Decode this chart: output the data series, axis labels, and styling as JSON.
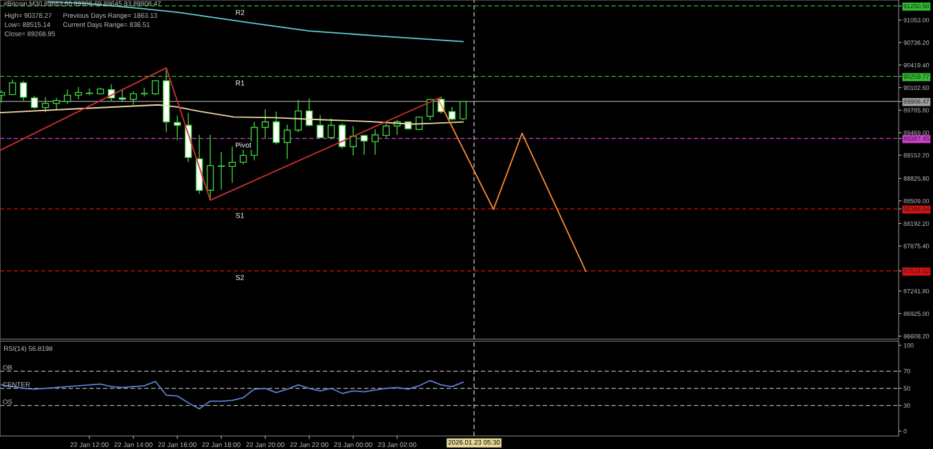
{
  "chart_data": [
    {
      "type": "candlestick",
      "title": "#Bitcoin,M30 89663.60 89908.69 89645.93 89908.47",
      "annotations": [
        "High= 90378.27",
        "Previous Days Range= 1863.13",
        "Low= 88515.14",
        "Current Days Range= 836.51",
        "Close= 89268.95"
      ],
      "x": [
        "2026-01-22T08:00",
        "2026-01-22T08:30",
        "2026-01-22T09:00",
        "2026-01-22T09:30",
        "2026-01-22T10:00",
        "2026-01-22T10:30",
        "2026-01-22T11:00",
        "2026-01-22T11:30",
        "2026-01-22T12:00",
        "2026-01-22T12:30",
        "2026-01-22T13:00",
        "2026-01-22T13:30",
        "2026-01-22T14:00",
        "2026-01-22T14:30",
        "2026-01-22T15:00",
        "2026-01-22T15:30",
        "2026-01-22T16:00",
        "2026-01-22T16:30",
        "2026-01-22T17:00",
        "2026-01-22T17:30",
        "2026-01-22T18:00",
        "2026-01-22T18:30",
        "2026-01-22T19:00",
        "2026-01-22T19:30",
        "2026-01-22T20:00",
        "2026-01-22T20:30",
        "2026-01-22T21:00",
        "2026-01-22T21:30",
        "2026-01-22T22:00",
        "2026-01-22T22:30",
        "2026-01-22T23:00",
        "2026-01-22T23:30",
        "2026-01-23T00:00",
        "2026-01-23T00:30",
        "2026-01-23T01:00",
        "2026-01-23T01:30",
        "2026-01-23T02:00",
        "2026-01-23T02:30",
        "2026-01-23T03:00",
        "2026-01-23T03:30",
        "2026-01-23T04:00",
        "2026-01-23T04:30",
        "2026-01-23T05:00"
      ],
      "ohlc": [
        [
          89997,
          90064,
          89891,
          90035
        ],
        [
          90006,
          90218,
          89997,
          90170
        ],
        [
          90170,
          90199,
          89920,
          89968
        ],
        [
          89958,
          89987,
          89804,
          89823
        ],
        [
          89823,
          89968,
          89756,
          89881
        ],
        [
          89881,
          89958,
          89785,
          89920
        ],
        [
          89910,
          90074,
          89872,
          89997
        ],
        [
          89997,
          90112,
          89939,
          90035
        ],
        [
          90021,
          90093,
          89997,
          90026
        ],
        [
          90016,
          90102,
          90016,
          90083
        ],
        [
          90074,
          90150,
          89910,
          89958
        ],
        [
          89958,
          90083,
          89900,
          89939
        ],
        [
          89939,
          90054,
          89862,
          90016
        ],
        [
          90016,
          90102,
          89978,
          90021
        ],
        [
          90016,
          90208,
          89997,
          90199
        ],
        [
          90199,
          90378,
          89477,
          89621
        ],
        [
          89611,
          89708,
          89361,
          89573
        ],
        [
          89573,
          89746,
          89053,
          89120
        ],
        [
          89101,
          89438,
          88610,
          88658
        ],
        [
          88658,
          89438,
          88515,
          89004
        ],
        [
          88995,
          89197,
          88668,
          89000
        ],
        [
          88995,
          89274,
          88764,
          89053
        ],
        [
          89053,
          89245,
          89024,
          89149
        ],
        [
          89149,
          89621,
          89081,
          89544
        ],
        [
          89544,
          89794,
          89390,
          89621
        ],
        [
          89621,
          89765,
          89303,
          89332
        ],
        [
          89332,
          89583,
          89101,
          89505
        ],
        [
          89505,
          89929,
          89477,
          89775
        ],
        [
          89775,
          89949,
          89563,
          89573
        ],
        [
          89573,
          89717,
          89390,
          89400
        ],
        [
          89400,
          89669,
          89380,
          89573
        ],
        [
          89573,
          89602,
          89245,
          89274
        ],
        [
          89274,
          89563,
          89149,
          89419
        ],
        [
          89429,
          89438,
          89158,
          89352
        ],
        [
          89342,
          89515,
          89158,
          89438
        ],
        [
          89429,
          89592,
          89400,
          89563
        ],
        [
          89563,
          89650,
          89438,
          89621
        ],
        [
          89621,
          89621,
          89515,
          89525
        ],
        [
          89515,
          89698,
          89515,
          89688
        ],
        [
          89698,
          89939,
          89640,
          89939
        ],
        [
          89939,
          89968,
          89737,
          89765
        ],
        [
          89765,
          89833,
          89640,
          89660
        ],
        [
          89663.6,
          89908.69,
          89645.93,
          89908.47
        ]
      ],
      "series": [
        {
          "type": "line",
          "color": "#5fd0d0",
          "x": [
            "2026-01-22T10:08",
            "2026-01-22T11:41",
            "2026-01-22T14:11",
            "2026-01-22T16:04",
            "2026-01-22T19:11",
            "2026-01-22T22:00",
            "2026-01-23T01:08",
            "2026-01-23T05:00"
          ],
          "values": [
            91310,
            91290,
            91220,
            91160,
            91020,
            90900,
            90830,
            90750
          ]
        },
        {
          "type": "line",
          "color": "#f0d8a0",
          "x": [
            "2026-01-22T07:56",
            "2026-01-22T11:04",
            "2026-01-22T15:08",
            "2026-01-22T16:00",
            "2026-01-22T17:00",
            "2026-01-22T18:34",
            "2026-01-22T20:26",
            "2026-01-22T22:38",
            "2026-01-23T00:30",
            "2026-01-23T02:41",
            "2026-01-23T03:38",
            "2026-01-23T05:00"
          ],
          "values": [
            89750,
            89800,
            89860,
            89830,
            89770,
            89690,
            89680,
            89650,
            89630,
            89590,
            89600,
            89620
          ]
        },
        {
          "type": "line",
          "color": "#d03030",
          "x": [
            "2026-01-22T07:56",
            "2026-01-22T15:30",
            "2026-01-22T17:30",
            "2026-01-23T04:00"
          ],
          "values": [
            89220,
            90380,
            88520,
            89970
          ]
        },
        {
          "type": "line",
          "color": "#ff8c30",
          "x": [
            "2026-01-23T03:53",
            "2026-01-23T06:23",
            "2026-01-23T07:41",
            "2026-01-23T10:35"
          ],
          "values": [
            89930,
            88390,
            89460,
            87520
          ]
        }
      ],
      "xlim": [
        "2026-01-22T07:56",
        "2026-01-24T00:49"
      ],
      "ylim": [
        86565,
        91335
      ],
      "yticks": [
        {
          "value": 91250.58,
          "label": "91250.58"
        },
        {
          "value": 90259.77,
          "label": "90259.77"
        },
        {
          "value": 89908.47,
          "label": "89908.47"
        },
        {
          "value": 89387.45,
          "label": "89387.45"
        },
        {
          "value": 88396.64,
          "label": "88396.64"
        },
        {
          "value": 87524.32,
          "label": "87524.32"
        },
        {
          "value": 91053.0,
          "label": "91053.00"
        },
        {
          "value": 90736.2,
          "label": "90736.20"
        },
        {
          "value": 90419.4,
          "label": "90419.40"
        },
        {
          "value": 90102.6,
          "label": "90102.60"
        },
        {
          "value": 89785.8,
          "label": "89785.80"
        },
        {
          "value": 89469.0,
          "label": "89469.00"
        },
        {
          "value": 89152.2,
          "label": "89152.20"
        },
        {
          "value": 88825.8,
          "label": "88825.80"
        },
        {
          "value": 88509.0,
          "label": "88509.00"
        },
        {
          "value": 88192.2,
          "label": "88192.20"
        },
        {
          "value": 87875.4,
          "label": "87875.40"
        },
        {
          "value": 87241.8,
          "label": "87241.80"
        },
        {
          "value": 86925.0,
          "label": "86925.00"
        },
        {
          "value": 86608.2,
          "label": "86608.20"
        }
      ],
      "ref_lines": [
        {
          "axis": "y",
          "value": 91250.58,
          "label": "R2",
          "color": "#30c030",
          "line_style": "dashed"
        },
        {
          "axis": "y",
          "value": 90259.77,
          "label": "R1",
          "color": "#30c030",
          "line_style": "dashed"
        },
        {
          "axis": "y",
          "value": 89908.47,
          "color": "#a0a0a0",
          "line_style": "solid"
        },
        {
          "axis": "y",
          "value": 89387.45,
          "label": "Pivot",
          "color": "#d040d0",
          "line_style": "dashed"
        },
        {
          "axis": "y",
          "value": 88396.64,
          "label": "S1",
          "color": "#e01010",
          "line_style": "dashed"
        },
        {
          "axis": "y",
          "value": 87524.32,
          "label": "S2",
          "color": "#e01010",
          "line_style": "dashed"
        },
        {
          "axis": "x",
          "value": "2026-01-23T05:30",
          "color": "#d0d0d0",
          "line_style": "dashed"
        }
      ],
      "tick_labels": "y"
    },
    {
      "type": "line",
      "title": "RSI(14) 56.8198",
      "series": [
        {
          "color": "#5b7fd0",
          "x": [
            "2026-01-22T08:00",
            "2026-01-22T08:30",
            "2026-01-22T09:00",
            "2026-01-22T09:30",
            "2026-01-22T10:00",
            "2026-01-22T10:30",
            "2026-01-22T11:00",
            "2026-01-22T11:30",
            "2026-01-22T12:00",
            "2026-01-22T12:30",
            "2026-01-22T13:00",
            "2026-01-22T13:30",
            "2026-01-22T14:00",
            "2026-01-22T14:30",
            "2026-01-22T15:00",
            "2026-01-22T15:30",
            "2026-01-22T16:00",
            "2026-01-22T16:30",
            "2026-01-22T17:00",
            "2026-01-22T17:30",
            "2026-01-22T18:00",
            "2026-01-22T18:30",
            "2026-01-22T19:00",
            "2026-01-22T19:30",
            "2026-01-22T20:00",
            "2026-01-22T20:30",
            "2026-01-22T21:00",
            "2026-01-22T21:30",
            "2026-01-22T22:00",
            "2026-01-22T22:30",
            "2026-01-22T23:00",
            "2026-01-22T23:30",
            "2026-01-23T00:00",
            "2026-01-23T00:30",
            "2026-01-23T01:00",
            "2026-01-23T01:30",
            "2026-01-23T02:00",
            "2026-01-23T02:30",
            "2026-01-23T03:00",
            "2026-01-23T03:30",
            "2026-01-23T04:00",
            "2026-01-23T04:30",
            "2026-01-23T05:00"
          ],
          "values": [
            54,
            52,
            50,
            49,
            50,
            51,
            52,
            53,
            54,
            55,
            52,
            51,
            52,
            53,
            58,
            42,
            41,
            33,
            26,
            35,
            35,
            36,
            39,
            49,
            50,
            45,
            49,
            54,
            50,
            47,
            50,
            44,
            47,
            46,
            48,
            50,
            51,
            49,
            53,
            59,
            54,
            52,
            57
          ]
        }
      ],
      "xlim": [
        "2026-01-22T07:56",
        "2026-01-24T00:49"
      ],
      "ylim": [
        -5.6,
        104.8
      ],
      "xticks": [
        {
          "value": "2026-01-22T12:00",
          "label": "22 Jan 12:00"
        },
        {
          "value": "2026-01-22T14:00",
          "label": "22 Jan 14:00"
        },
        {
          "value": "2026-01-22T16:00",
          "label": "22 Jan 16:00"
        },
        {
          "value": "2026-01-22T18:00",
          "label": "22 Jan 18:00"
        },
        {
          "value": "2026-01-22T20:00",
          "label": "22 Jan 20:00"
        },
        {
          "value": "2026-01-22T22:00",
          "label": "22 Jan 22:00"
        },
        {
          "value": "2026-01-23T00:00",
          "label": "23 Jan 00:00"
        },
        {
          "value": "2026-01-23T02:00",
          "label": "23 Jan 02:00"
        }
      ],
      "yticks": [
        100,
        70,
        50,
        30,
        0
      ],
      "ref_lines": [
        {
          "axis": "y",
          "value": 70,
          "label": "OB",
          "color": "#b0b0b0",
          "line_style": "dashed"
        },
        {
          "axis": "y",
          "value": 50,
          "label": "CENTER",
          "color": "#b0b0b0",
          "line_style": "dashed"
        },
        {
          "axis": "y",
          "value": 30,
          "label": "OS",
          "color": "#b0b0b0",
          "line_style": "dashed"
        },
        {
          "axis": "x",
          "value": "2026-01-23T05:30",
          "label": "2026.01.23 05:30",
          "color": "#d0d0d0",
          "line_style": "dashed"
        }
      ]
    }
  ]
}
